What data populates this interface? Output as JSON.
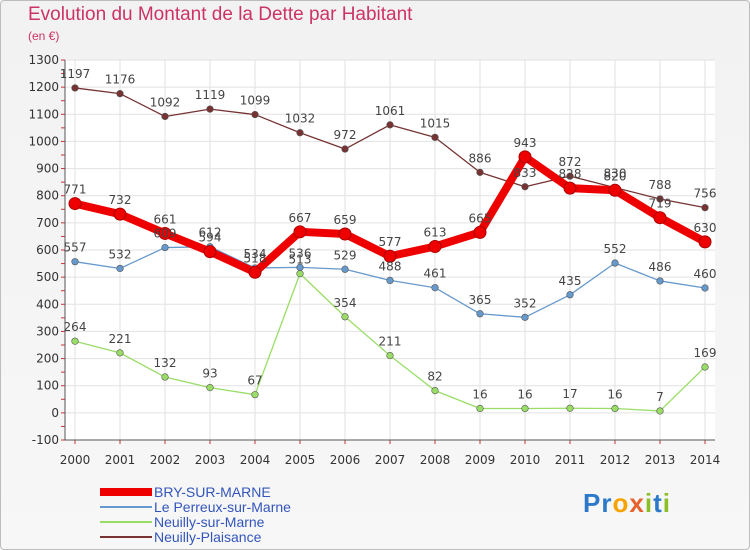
{
  "title": "Evolution du Montant de la Dette par Habitant",
  "subtitle": "(en €)",
  "brand": {
    "text": "Proxiti",
    "letters": [
      {
        "ch": "P",
        "color": "#2c79c9"
      },
      {
        "ch": "r",
        "color": "#2c79c9"
      },
      {
        "ch": "o",
        "color": "#f5a300"
      },
      {
        "ch": "x",
        "color": "#e8612c"
      },
      {
        "ch": "i",
        "color": "#8cbf26"
      },
      {
        "ch": "t",
        "color": "#2c79c9"
      },
      {
        "ch": "i",
        "color": "#8cbf26"
      }
    ]
  },
  "chart_data": {
    "type": "line",
    "title": "Evolution du Montant de la Dette par Habitant",
    "ylabel": "(en €)",
    "xlabel": "",
    "ylim": [
      -100,
      1300
    ],
    "yticks": [
      -100,
      0,
      100,
      200,
      300,
      400,
      500,
      600,
      700,
      800,
      900,
      1000,
      1100,
      1200,
      1300
    ],
    "categories": [
      "2000",
      "2001",
      "2002",
      "2003",
      "2004",
      "2005",
      "2006",
      "2007",
      "2008",
      "2009",
      "2010",
      "2011",
      "2012",
      "2013",
      "2014"
    ],
    "grid": true,
    "legend_position": "bottom-left",
    "series": [
      {
        "name": "BRY-SUR-MARNE",
        "color": "#ee0000",
        "values": [
          771,
          732,
          661,
          594,
          518,
          667,
          659,
          577,
          613,
          665,
          943,
          828,
          820,
          719,
          630
        ]
      },
      {
        "name": "Le Perreux-sur-Marne",
        "color": "#6699cc",
        "values": [
          557,
          532,
          609,
          612,
          534,
          536,
          529,
          488,
          461,
          365,
          352,
          435,
          552,
          486,
          460
        ]
      },
      {
        "name": "Neuilly-sur-Marne",
        "color": "#99dd66",
        "values": [
          264,
          221,
          132,
          93,
          67,
          513,
          354,
          211,
          82,
          16,
          16,
          17,
          16,
          7,
          169
        ]
      },
      {
        "name": "Neuilly-Plaisance",
        "color": "#773333",
        "values": [
          1197,
          1176,
          1092,
          1119,
          1099,
          1032,
          972,
          1061,
          1015,
          886,
          833,
          872,
          830,
          788,
          756
        ]
      }
    ]
  }
}
